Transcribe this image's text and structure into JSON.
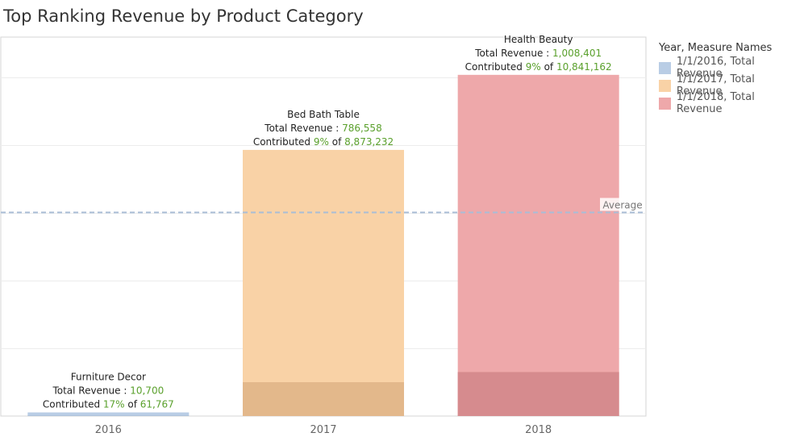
{
  "title": "Top Ranking Revenue by Product Category",
  "legend": {
    "title": "Year, Measure Names",
    "items": [
      {
        "label": "1/1/2016, Total Revenue",
        "color": "#b9cde5"
      },
      {
        "label": "1/1/2017, Total Revenue",
        "color": "#f9d2a6"
      },
      {
        "label": "1/1/2018, Total Revenue",
        "color": "#eea8aa"
      }
    ]
  },
  "chart_data": {
    "type": "bar",
    "categories": [
      "2016",
      "2017",
      "2018"
    ],
    "values": [
      10700,
      786558,
      1008401
    ],
    "highlight_values": [
      1500,
      100000,
      130000
    ],
    "colors": [
      "#b9cde5",
      "#f9d2a6",
      "#eea8aa"
    ],
    "highlight_colors": [
      "#a9bfd8",
      "#e3b88b",
      "#d68b8e"
    ],
    "ylim": [
      0,
      1120000
    ],
    "grid": true,
    "reference_line": {
      "label": "Average",
      "value": 601886
    },
    "annotations": [
      {
        "category": "Furniture Decor",
        "revenue_label": "Total Revenue : ",
        "revenue": "10,700",
        "contrib_label": "Contributed ",
        "percent": "17%",
        "of_label": " of ",
        "total": "61,767"
      },
      {
        "category": "Bed Bath Table",
        "revenue_label": "Total Revenue : ",
        "revenue": "786,558",
        "contrib_label": "Contributed ",
        "percent": "9%",
        "of_label": " of ",
        "total": "8,873,232"
      },
      {
        "category": "Health Beauty",
        "revenue_label": "Total Revenue : ",
        "revenue": "1,008,401",
        "contrib_label": "Contributed ",
        "percent": "9%",
        "of_label": " of ",
        "total": "10,841,162"
      }
    ],
    "value_color": "#5aa02c"
  }
}
